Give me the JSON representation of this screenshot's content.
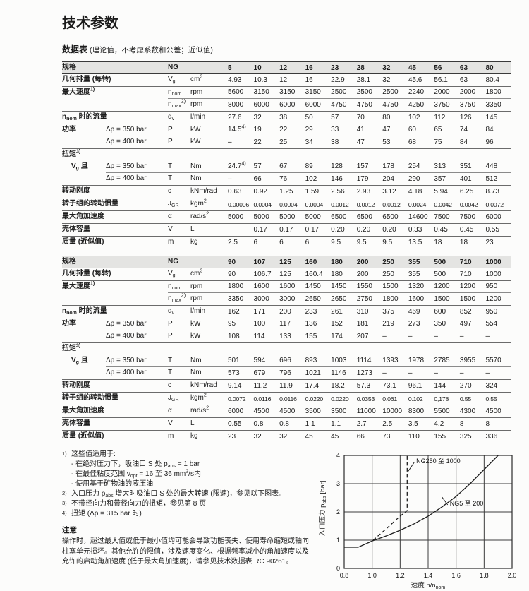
{
  "page": {
    "title": "技术参数",
    "subtitle_bold": "数据表",
    "subtitle_rest": "(理论值，不考虑系数和公差；近似值)"
  },
  "tables": [
    {
      "header": {
        "label": "规格",
        "symbol": "NG",
        "unit": "",
        "values": [
          "5",
          "10",
          "12",
          "16",
          "23",
          "28",
          "32",
          "45",
          "56",
          "63",
          "80"
        ]
      },
      "rows": [
        {
          "label": "几何排量 (每转)",
          "sub": "",
          "symbol": "V_{g}",
          "unit": "cm^{3}",
          "sep": "full",
          "values": [
            "4.93",
            "10.3",
            "12",
            "16",
            "22.9",
            "28.1",
            "32",
            "45.6",
            "56.1",
            "63",
            "80.4"
          ]
        },
        {
          "label": "最大速度^{1)}",
          "sub": "",
          "symbol": "n_{nom}",
          "unit": "rpm",
          "sep": "sym",
          "values": [
            "5600",
            "3150",
            "3150",
            "3150",
            "2500",
            "2500",
            "2500",
            "2240",
            "2000",
            "2000",
            "1800"
          ]
        },
        {
          "label": "",
          "sub": "",
          "symbol": "n_{max}^{2)}",
          "unit": "rpm",
          "sep": "full",
          "values": [
            "8000",
            "6000",
            "6000",
            "6000",
            "4750",
            "4750",
            "4750",
            "4250",
            "3750",
            "3750",
            "3350"
          ]
        },
        {
          "label": "n_{nom} 时的流量",
          "sub": "",
          "symbol": "q_{v}",
          "unit": "l/min",
          "sep": "full",
          "values": [
            "27.6",
            "32",
            "38",
            "50",
            "57",
            "70",
            "80",
            "102",
            "112",
            "126",
            "145"
          ]
        },
        {
          "label": "功率",
          "sub": "Δp = 350 bar",
          "symbol": "P",
          "unit": "kW",
          "sep": "sub",
          "values": [
            "14.5^{4)}",
            "19",
            "22",
            "29",
            "33",
            "41",
            "47",
            "60",
            "65",
            "74",
            "84"
          ]
        },
        {
          "label": "",
          "sub": "Δp = 400 bar",
          "symbol": "P",
          "unit": "kW",
          "sep": "full",
          "values": [
            "–",
            "22",
            "25",
            "34",
            "38",
            "47",
            "53",
            "68",
            "75",
            "84",
            "96"
          ]
        },
        {
          "label": "扭矩^{3)}",
          "section": true,
          "sep": "none"
        },
        {
          "label": "V_{g} 且",
          "indent": true,
          "sub": "Δp = 350 bar",
          "symbol": "T",
          "unit": "Nm",
          "sep": "sub",
          "values": [
            "24.7^{4)}",
            "57",
            "67",
            "89",
            "128",
            "157",
            "178",
            "254",
            "313",
            "351",
            "448"
          ]
        },
        {
          "label": "",
          "sub": "Δp = 400 bar",
          "symbol": "T",
          "unit": "Nm",
          "sep": "full",
          "values": [
            "–",
            "66",
            "76",
            "102",
            "146",
            "179",
            "204",
            "290",
            "357",
            "401",
            "512"
          ]
        },
        {
          "label": "转动刚度",
          "sub": "",
          "symbol": "c",
          "unit": "kNm/rad",
          "sep": "full",
          "values": [
            "0.63",
            "0.92",
            "1.25",
            "1.59",
            "2.56",
            "2.93",
            "3.12",
            "4.18",
            "5.94",
            "6.25",
            "8.73"
          ]
        },
        {
          "label": "转子组的转动惯量",
          "sub": "",
          "symbol": "J_{GR}",
          "unit": "kgm^{2}",
          "sep": "full",
          "tight": true,
          "values": [
            "0.00006",
            "0.0004",
            "0.0004",
            "0.0004",
            "0.0012",
            "0.0012",
            "0.0012",
            "0.0024",
            "0.0042",
            "0.0042",
            "0.0072"
          ]
        },
        {
          "label": "最大角加速度",
          "sub": "",
          "symbol": "α",
          "unit": "rad/s^{2}",
          "sep": "full",
          "values": [
            "5000",
            "5000",
            "5000",
            "5000",
            "6500",
            "6500",
            "6500",
            "14600",
            "7500",
            "7500",
            "6000"
          ]
        },
        {
          "label": "壳体容量",
          "sub": "",
          "symbol": "V",
          "unit": "L",
          "sep": "full",
          "values": [
            "",
            "0.17",
            "0.17",
            "0.17",
            "0.20",
            "0.20",
            "0.20",
            "0.33",
            "0.45",
            "0.45",
            "0.55"
          ]
        },
        {
          "label": "质量 (近似值)",
          "sub": "",
          "symbol": "m",
          "unit": "kg",
          "sep": "full",
          "values": [
            "2.5",
            "6",
            "6",
            "6",
            "9.5",
            "9.5",
            "9.5",
            "13.5",
            "18",
            "18",
            "23"
          ]
        }
      ]
    },
    {
      "header": {
        "label": "规格",
        "symbol": "NG",
        "unit": "",
        "values": [
          "90",
          "107",
          "125",
          "160",
          "180",
          "200",
          "250",
          "355",
          "500",
          "710",
          "1000"
        ]
      },
      "rows": [
        {
          "label": "几何排量 (每转)",
          "sub": "",
          "symbol": "V_{g}",
          "unit": "cm^{3}",
          "sep": "full",
          "values": [
            "90",
            "106.7",
            "125",
            "160.4",
            "180",
            "200",
            "250",
            "355",
            "500",
            "710",
            "1000"
          ]
        },
        {
          "label": "最大速度^{1)}",
          "sub": "",
          "symbol": "n_{nom}",
          "unit": "rpm",
          "sep": "sym",
          "values": [
            "1800",
            "1600",
            "1600",
            "1450",
            "1450",
            "1550",
            "1500",
            "1320",
            "1200",
            "1200",
            "950"
          ]
        },
        {
          "label": "",
          "sub": "",
          "symbol": "n_{max}^{2)}",
          "unit": "rpm",
          "sep": "full",
          "values": [
            "3350",
            "3000",
            "3000",
            "2650",
            "2650",
            "2750",
            "1800",
            "1600",
            "1500",
            "1500",
            "1200"
          ]
        },
        {
          "label": "n_{nom} 时的流量",
          "sub": "",
          "symbol": "q_{v}",
          "unit": "l/min",
          "sep": "full",
          "values": [
            "162",
            "171",
            "200",
            "233",
            "261",
            "310",
            "375",
            "469",
            "600",
            "852",
            "950"
          ]
        },
        {
          "label": "功率",
          "sub": "Δp = 350 bar",
          "symbol": "P",
          "unit": "kW",
          "sep": "sub",
          "values": [
            "95",
            "100",
            "117",
            "136",
            "152",
            "181",
            "219",
            "273",
            "350",
            "497",
            "554"
          ]
        },
        {
          "label": "",
          "sub": "Δp = 400 bar",
          "symbol": "P",
          "unit": "kW",
          "sep": "full",
          "values": [
            "108",
            "114",
            "133",
            "155",
            "174",
            "207",
            "–",
            "–",
            "–",
            "–",
            "–"
          ]
        },
        {
          "label": "扭矩^{3)}",
          "section": true,
          "sep": "none"
        },
        {
          "label": "V_{g} 且",
          "indent": true,
          "sub": "Δp = 350 bar",
          "symbol": "T",
          "unit": "Nm",
          "sep": "sub",
          "values": [
            "501",
            "594",
            "696",
            "893",
            "1003",
            "1114",
            "1393",
            "1978",
            "2785",
            "3955",
            "5570"
          ]
        },
        {
          "label": "",
          "sub": "Δp = 400 bar",
          "symbol": "T",
          "unit": "Nm",
          "sep": "full",
          "values": [
            "573",
            "679",
            "796",
            "1021",
            "1146",
            "1273",
            "–",
            "–",
            "–",
            "–",
            "–"
          ]
        },
        {
          "label": "转动刚度",
          "sub": "",
          "symbol": "c",
          "unit": "kNm/rad",
          "sep": "full",
          "values": [
            "9.14",
            "11.2",
            "11.9",
            "17.4",
            "18.2",
            "57.3",
            "73.1",
            "96.1",
            "144",
            "270",
            "324"
          ]
        },
        {
          "label": "转子组的转动惯量",
          "sub": "",
          "symbol": "J_{GR}",
          "unit": "kgm^{2}",
          "sep": "full",
          "tight": true,
          "values": [
            "0.0072",
            "0.0116",
            "0.0116",
            "0.0220",
            "0.0220",
            "0.0353",
            "0.061",
            "0.102",
            "0,178",
            "0.55",
            "0.55"
          ]
        },
        {
          "label": "最大角加速度",
          "sub": "",
          "symbol": "α",
          "unit": "rad/s^{2}",
          "sep": "full",
          "values": [
            "6000",
            "4500",
            "4500",
            "3500",
            "3500",
            "11000",
            "10000",
            "8300",
            "5500",
            "4300",
            "4500"
          ]
        },
        {
          "label": "壳体容量",
          "sub": "",
          "symbol": "V",
          "unit": "L",
          "sep": "full",
          "values": [
            "0.55",
            "0.8",
            "0.8",
            "1.1",
            "1.1",
            "2.7",
            "2.5",
            "3.5",
            "4.2",
            "8",
            "8"
          ]
        },
        {
          "label": "质量 (近似值)",
          "sub": "",
          "symbol": "m",
          "unit": "kg",
          "sep": "full",
          "values": [
            "23",
            "32",
            "32",
            "45",
            "45",
            "66",
            "73",
            "110",
            "155",
            "325",
            "336"
          ]
        }
      ]
    }
  ],
  "footnotes": [
    {
      "marker": "1)",
      "lines": [
        "这些值适用于:",
        "- 在绝对压力下，吸油口 S 处 p_{abs} = 1 bar",
        "- 在最佳粘度范围 ν_{opt} = 16 至 36 mm^{2}/s内",
        "- 使用基于矿物油的液压油"
      ]
    },
    {
      "marker": "2)",
      "lines": [
        "入口压力 p_{abs} 增大时吸油口 S 处的最大转速 (限速)，参见以下图表。"
      ]
    },
    {
      "marker": "3)",
      "lines": [
        "不带径向力和带径向力的扭矩，参见第 8 页"
      ]
    },
    {
      "marker": "4)",
      "lines": [
        "扭矩 (Δp = 315 bar 时)"
      ]
    }
  ],
  "note": {
    "title": "注意",
    "body": "操作时，超过最大值或低于最小值均可能会导致功能丧失、使用寿命缩短或轴向柱塞单元损坏。其他允许的限值，涉及速度变化、根据频率减小的角加速度以及允许的启动角加速度 (低于最大角加速度)，请参见技术数据表 RC 90261。"
  },
  "chart_data": {
    "type": "line",
    "title": "",
    "xlabel": "速度 n/n_{nom}",
    "ylabel": "入口压力 p_{abs} [bar]",
    "xlim": [
      0.8,
      2.0
    ],
    "ylim": [
      0,
      4
    ],
    "xticks": [
      0.8,
      1.0,
      1.2,
      1.4,
      1.6,
      1.8,
      2.0
    ],
    "yticks": [
      0,
      1,
      2,
      3,
      4
    ],
    "grid": true,
    "legend_position": "inline-annotations",
    "series": [
      {
        "name": "NG5 至 200",
        "style": "solid",
        "points": [
          [
            0.8,
            0.75
          ],
          [
            0.9,
            0.75
          ],
          [
            1.0,
            0.97
          ],
          [
            1.1,
            1.15
          ],
          [
            1.2,
            1.35
          ],
          [
            1.3,
            1.58
          ],
          [
            1.4,
            1.85
          ],
          [
            1.5,
            2.18
          ],
          [
            1.6,
            2.55
          ],
          [
            1.7,
            3.0
          ],
          [
            1.8,
            3.5
          ],
          [
            1.9,
            4.0
          ]
        ]
      },
      {
        "name": "NG250 至 1000",
        "style": "dashed",
        "points": [
          [
            0.93,
            0.82
          ],
          [
            1.0,
            0.97
          ],
          [
            1.1,
            1.4
          ],
          [
            1.2,
            1.85
          ],
          [
            1.25,
            2.05
          ],
          [
            1.25,
            4.0
          ]
        ]
      }
    ],
    "annotations": [
      {
        "text": "NG250 至 1000",
        "x": 1.31,
        "y": 3.8,
        "leader": [
          1.252,
          3.4
        ]
      },
      {
        "text": "NG5 至 200",
        "x": 1.55,
        "y": 2.3,
        "leader": [
          1.5,
          2.52
        ]
      }
    ]
  }
}
